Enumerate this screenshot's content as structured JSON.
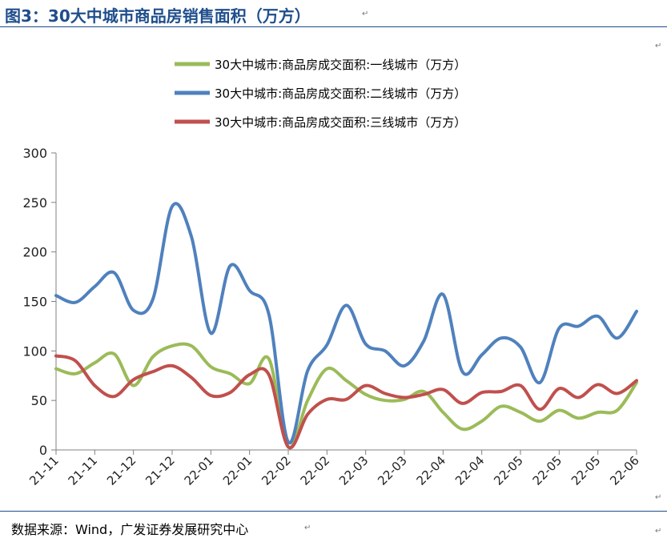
{
  "figure": {
    "title": "图3：30大中城市商品房销售面积（万方）",
    "source": "数据来源：Wind，广发证券发展研究中心",
    "return_mark": "↵"
  },
  "chart_data": {
    "type": "line",
    "title": "",
    "xlabel": "",
    "ylabel": "",
    "ylim": [
      0,
      300
    ],
    "yticks": [
      0,
      50,
      100,
      150,
      200,
      250,
      300
    ],
    "grid": false,
    "legend_position": "top",
    "x_tick_labels": [
      "21-11",
      "21-11",
      "21-12",
      "21-12",
      "22-01",
      "22-01",
      "22-02",
      "22-02",
      "22-03",
      "22-03",
      "22-04",
      "22-04",
      "22-05",
      "22-05",
      "22-05",
      "22-06"
    ],
    "series": [
      {
        "name": "30大中城市:商品房成交面积:一线城市（万方）",
        "color": "#9bbb59",
        "values": [
          82,
          77,
          88,
          97,
          65,
          94,
          105,
          105,
          84,
          77,
          67,
          92,
          3,
          50,
          82,
          70,
          56,
          50,
          51,
          59,
          38,
          21,
          29,
          44,
          38,
          29,
          40,
          32,
          38,
          40,
          68
        ]
      },
      {
        "name": "30大中城市:商品房成交面积:二线城市（万方）",
        "color": "#4f81bd",
        "values": [
          156,
          149,
          165,
          179,
          141,
          152,
          246,
          215,
          118,
          186,
          161,
          137,
          8,
          80,
          106,
          146,
          107,
          100,
          85,
          110,
          157,
          79,
          96,
          113,
          104,
          68,
          123,
          125,
          135,
          113,
          140
        ]
      },
      {
        "name": "30大中城市:商品房成交面积:三线城市（万方）",
        "color": "#c0504d",
        "values": [
          95,
          90,
          65,
          54,
          71,
          79,
          85,
          73,
          55,
          58,
          76,
          76,
          3,
          36,
          51,
          51,
          65,
          57,
          53,
          56,
          61,
          47,
          58,
          59,
          65,
          41,
          62,
          53,
          66,
          57,
          70
        ]
      }
    ]
  }
}
